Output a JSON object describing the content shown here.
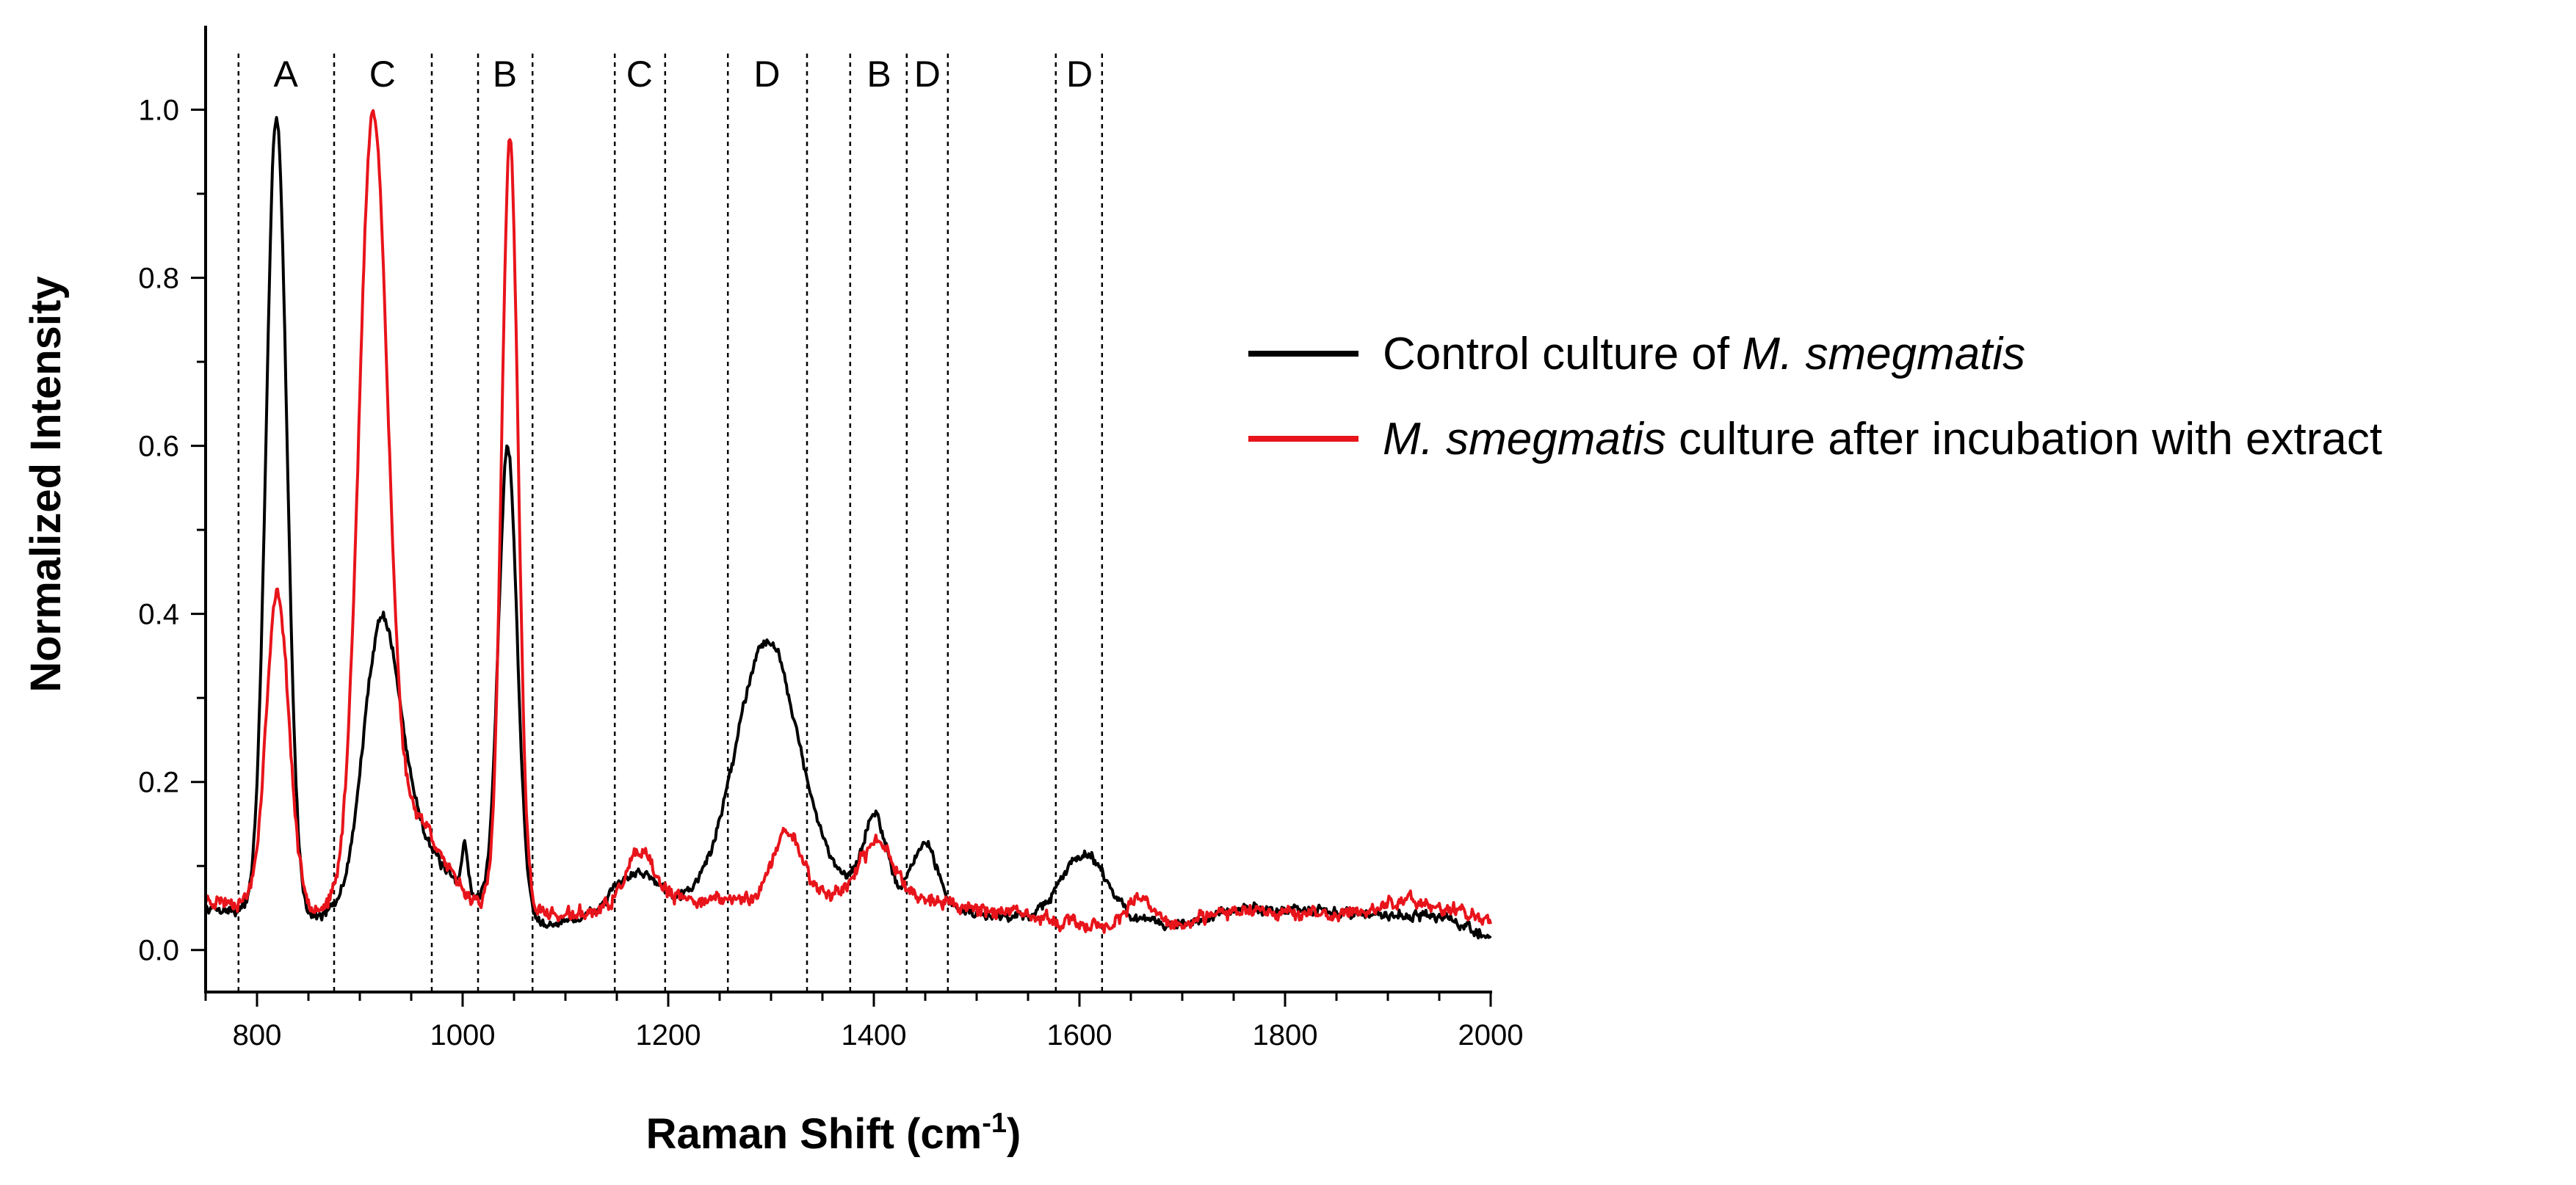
{
  "chart_data": {
    "type": "line",
    "title": "",
    "xlabel": "Raman Shift (cm",
    "xlabel_sup": "-1",
    "xlabel_close": ")",
    "ylabel": "Normalized Intensity",
    "xlim": [
      750,
      2000
    ],
    "ylim": [
      -0.05,
      1.1
    ],
    "xticks": [
      {
        "value": 800,
        "label": "800"
      },
      {
        "value": 1000,
        "label": "1000"
      },
      {
        "value": 1200,
        "label": "1200"
      },
      {
        "value": 1400,
        "label": "1400"
      },
      {
        "value": 1600,
        "label": "1600"
      },
      {
        "value": 1800,
        "label": "1800"
      },
      {
        "value": 2000,
        "label": "2000"
      }
    ],
    "yticks": [
      {
        "value": 0.0,
        "label": "0.0"
      },
      {
        "value": 0.2,
        "label": "0.2"
      },
      {
        "value": 0.4,
        "label": "0.4"
      },
      {
        "value": 0.6,
        "label": "0.6"
      },
      {
        "value": 0.8,
        "label": "0.8"
      },
      {
        "value": 1.0,
        "label": "1.0"
      }
    ],
    "region_lines": [
      782,
      875,
      970,
      1015,
      1068,
      1148,
      1197,
      1258,
      1335,
      1377,
      1432,
      1472,
      1577,
      1622
    ],
    "region_labels": [
      {
        "label": "A",
        "x": 828
      },
      {
        "label": "C",
        "x": 922
      },
      {
        "label": "B",
        "x": 1041
      },
      {
        "label": "C",
        "x": 1172
      },
      {
        "label": "D",
        "x": 1296
      },
      {
        "label": "B",
        "x": 1405
      },
      {
        "label": "D",
        "x": 1452
      },
      {
        "label": "D",
        "x": 1600
      }
    ],
    "legend_position": "right",
    "series": [
      {
        "name": "Control culture of M. smegmatis",
        "legend_parts": [
          {
            "text": "Control culture of ",
            "italic": false
          },
          {
            "text": "M. smegmatis",
            "italic": true
          }
        ],
        "color": "#000000",
        "noise": 0.006,
        "seed": 7,
        "baseline": [
          [
            750,
            0.05
          ],
          [
            860,
            0.04
          ],
          [
            990,
            0.07
          ],
          [
            1090,
            0.03
          ],
          [
            1150,
            0.05
          ],
          [
            1230,
            0.06
          ],
          [
            1380,
            0.08
          ],
          [
            1470,
            0.05
          ],
          [
            1530,
            0.04
          ],
          [
            1700,
            0.03
          ],
          [
            1760,
            0.05
          ],
          [
            1850,
            0.045
          ],
          [
            1950,
            0.04
          ],
          [
            2000,
            0.015
          ]
        ],
        "peaks": [
          {
            "center": 819,
            "amp": 0.95,
            "width": 10
          },
          {
            "center": 920,
            "amp": 0.31,
            "width": 17
          },
          {
            "center": 950,
            "amp": 0.08,
            "width": 22
          },
          {
            "center": 1002,
            "amp": 0.06,
            "width": 3
          },
          {
            "center": 1044,
            "amp": 0.55,
            "width": 9
          },
          {
            "center": 1170,
            "amp": 0.04,
            "width": 20
          },
          {
            "center": 1296,
            "amp": 0.3,
            "width": 30
          },
          {
            "center": 1401,
            "amp": 0.09,
            "width": 10
          },
          {
            "center": 1450,
            "amp": 0.07,
            "width": 12
          },
          {
            "center": 1605,
            "amp": 0.08,
            "width": 22
          }
        ]
      },
      {
        "name": "M. smegmatis culture after incubation with extract",
        "legend_parts": [
          {
            "text": "M. smegmatis",
            "italic": true
          },
          {
            "text": " culture after incubation with extract",
            "italic": false
          }
        ],
        "color": "#e8141b",
        "noise": 0.008,
        "seed": 23,
        "baseline": [
          [
            750,
            0.06
          ],
          [
            870,
            0.05
          ],
          [
            1000,
            0.06
          ],
          [
            1100,
            0.04
          ],
          [
            1200,
            0.06
          ],
          [
            1300,
            0.06
          ],
          [
            1400,
            0.07
          ],
          [
            1500,
            0.05
          ],
          [
            1600,
            0.03
          ],
          [
            1700,
            0.03
          ],
          [
            1760,
            0.05
          ],
          [
            1850,
            0.04
          ],
          [
            1920,
            0.06
          ],
          [
            2000,
            0.035
          ]
        ],
        "peaks": [
          {
            "center": 820,
            "amp": 0.37,
            "width": 11
          },
          {
            "center": 913,
            "amp": 0.93,
            "width": 14
          },
          {
            "center": 955,
            "amp": 0.1,
            "width": 22
          },
          {
            "center": 1046,
            "amp": 0.91,
            "width": 8
          },
          {
            "center": 1172,
            "amp": 0.06,
            "width": 14
          },
          {
            "center": 1316,
            "amp": 0.08,
            "width": 14
          },
          {
            "center": 1404,
            "amp": 0.06,
            "width": 16
          },
          {
            "center": 1660,
            "amp": 0.03,
            "width": 12
          }
        ]
      }
    ]
  }
}
